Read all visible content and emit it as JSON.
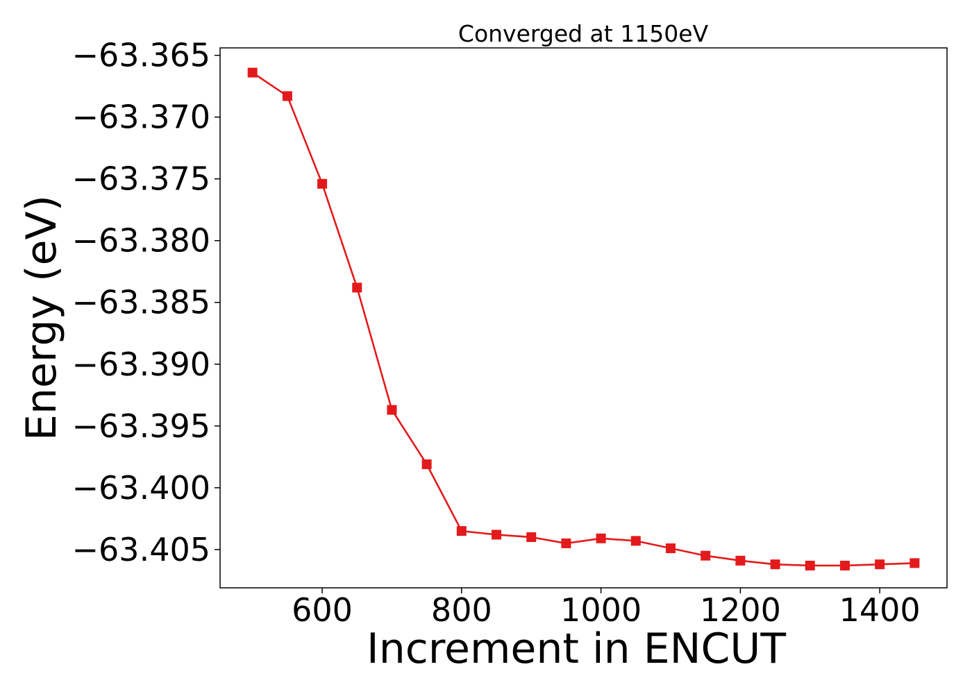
{
  "chart_data": {
    "type": "line",
    "title": "Converged at 1150eV",
    "xlabel": "Increment in ENCUT",
    "ylabel": "Energy (eV)",
    "xlim": [
      453.5,
      1496.5
    ],
    "ylim": [
      -63.4081,
      -63.3644
    ],
    "xticks": [
      600,
      800,
      1000,
      1200,
      1400
    ],
    "xtick_labels": [
      "600",
      "800",
      "1000",
      "1200",
      "1400"
    ],
    "yticks": [
      -63.365,
      -63.37,
      -63.375,
      -63.38,
      -63.385,
      -63.39,
      -63.395,
      -63.4,
      -63.405
    ],
    "ytick_labels": [
      "−63.365",
      "−63.370",
      "−63.375",
      "−63.380",
      "−63.385",
      "−63.390",
      "−63.395",
      "−63.400",
      "−63.405"
    ],
    "grid": false,
    "series": [
      {
        "color": "#e31a1c",
        "marker": "square",
        "x": [
          500,
          550,
          600,
          650,
          700,
          750,
          800,
          850,
          900,
          950,
          1000,
          1050,
          1100,
          1150,
          1200,
          1250,
          1300,
          1350,
          1400,
          1450
        ],
        "y": [
          -63.3664,
          -63.3683,
          -63.3754,
          -63.3838,
          -63.3937,
          -63.3981,
          -63.4035,
          -63.4038,
          -63.404,
          -63.4045,
          -63.4041,
          -63.4043,
          -63.4049,
          -63.4055,
          -63.4059,
          -63.4062,
          -63.4063,
          -63.4063,
          -63.4062,
          -63.4061
        ]
      }
    ]
  }
}
